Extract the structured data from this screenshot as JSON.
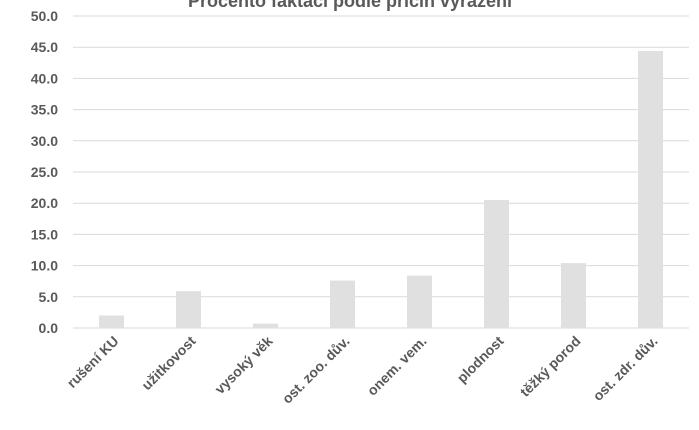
{
  "chart_data": {
    "type": "bar",
    "title": "Procento faktací podle příčin vyřazení",
    "categories": [
      "rušení KU",
      "užitkovost",
      "vysoký věk",
      "ost. zoo. dův.",
      "onem. vem.",
      "plodnost",
      "těžký porod",
      "ost. zdr. dův."
    ],
    "values": [
      2.0,
      5.9,
      0.7,
      7.6,
      8.4,
      20.5,
      10.4,
      44.4
    ],
    "ylim": [
      0,
      50
    ],
    "yticks": [
      "0.0",
      "5.0",
      "10.0",
      "15.0",
      "20.0",
      "25.0",
      "30.0",
      "35.0",
      "40.0",
      "45.0",
      "50.0"
    ],
    "xlabel": "",
    "ylabel": "",
    "grid": true,
    "bar_color": "#e0e0e0",
    "grid_color": "#d9d9d9",
    "text_color": "#595959"
  }
}
